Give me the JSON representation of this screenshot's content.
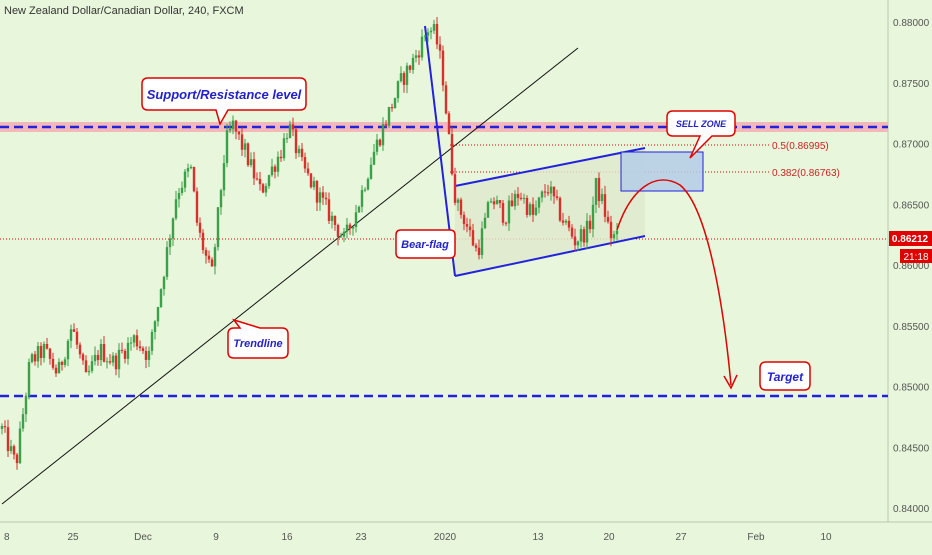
{
  "header": {
    "title": "New Zealand Dollar/Canadian Dollar, 240, FXCM"
  },
  "colors": {
    "background": "#e8f6db",
    "candle_up": "#3aa04a",
    "candle_down": "#d9302c",
    "blue": "#2222dd",
    "red": "#e00000",
    "resistance_band": "#f3b9b9",
    "sell_zone": "#b4cde8"
  },
  "chart_data": {
    "type": "candlestick",
    "ylim": [
      0.8395,
      0.881
    ],
    "y_ticks": [
      "0.88000",
      "0.87500",
      "0.87000",
      "0.86500",
      "0.86000",
      "0.85500",
      "0.85000",
      "0.84500",
      "0.84000"
    ],
    "x_ticks": [
      "8",
      "25",
      "Dec",
      "9",
      "16",
      "23",
      "2020",
      "13",
      "20",
      "27",
      "Feb",
      "10"
    ],
    "price_path": [
      {
        "t": 0,
        "p": 0.8465
      },
      {
        "t": 2,
        "p": 0.8435
      },
      {
        "t": 4,
        "p": 0.852
      },
      {
        "t": 6,
        "p": 0.853
      },
      {
        "t": 8,
        "p": 0.851
      },
      {
        "t": 10,
        "p": 0.855
      },
      {
        "t": 12,
        "p": 0.8505
      },
      {
        "t": 14,
        "p": 0.853
      },
      {
        "t": 16,
        "p": 0.852
      },
      {
        "t": 19,
        "p": 0.854
      },
      {
        "t": 21,
        "p": 0.8525
      },
      {
        "t": 23,
        "p": 0.859
      },
      {
        "t": 25,
        "p": 0.866
      },
      {
        "t": 27,
        "p": 0.868
      },
      {
        "t": 28,
        "p": 0.863
      },
      {
        "t": 30,
        "p": 0.859
      },
      {
        "t": 32,
        "p": 0.87
      },
      {
        "t": 33,
        "p": 0.8715
      },
      {
        "t": 35,
        "p": 0.869
      },
      {
        "t": 37,
        "p": 0.866
      },
      {
        "t": 40,
        "p": 0.8695
      },
      {
        "t": 41,
        "p": 0.8715
      },
      {
        "t": 43,
        "p": 0.868
      },
      {
        "t": 46,
        "p": 0.865
      },
      {
        "t": 49,
        "p": 0.862
      },
      {
        "t": 51,
        "p": 0.865
      },
      {
        "t": 53,
        "p": 0.869
      },
      {
        "t": 55,
        "p": 0.872
      },
      {
        "t": 57,
        "p": 0.875
      },
      {
        "t": 59,
        "p": 0.877
      },
      {
        "t": 61,
        "p": 0.8795
      },
      {
        "t": 62,
        "p": 0.879
      },
      {
        "t": 63,
        "p": 0.876
      },
      {
        "t": 64,
        "p": 0.87
      },
      {
        "t": 65,
        "p": 0.865
      },
      {
        "t": 66,
        "p": 0.864
      },
      {
        "t": 68,
        "p": 0.861
      },
      {
        "t": 70,
        "p": 0.8655
      },
      {
        "t": 72,
        "p": 0.864
      },
      {
        "t": 74,
        "p": 0.866
      },
      {
        "t": 76,
        "p": 0.864
      },
      {
        "t": 78,
        "p": 0.8665
      },
      {
        "t": 80,
        "p": 0.864
      },
      {
        "t": 82,
        "p": 0.862
      },
      {
        "t": 84,
        "p": 0.863
      },
      {
        "t": 85,
        "p": 0.8665
      },
      {
        "t": 86,
        "p": 0.865
      },
      {
        "t": 87,
        "p": 0.8625
      },
      {
        "t": 88,
        "p": 0.8622
      }
    ],
    "resistance_level": 0.8713,
    "target_level": 0.849,
    "current_price_level": 0.86212,
    "fib_levels": [
      {
        "label": "0.5(0.86995)",
        "value": 0.86995
      },
      {
        "label": "0.382(0.86763)",
        "value": 0.86763
      }
    ],
    "current_price_label": "0.86212",
    "countdown_label": "21:18",
    "annotations": {
      "support_resistance": "Support/Resistance level",
      "sell_zone": "SELL ZONE",
      "bear_flag": "Bear-flag",
      "trendline": "Trendline",
      "target": "Target"
    }
  }
}
